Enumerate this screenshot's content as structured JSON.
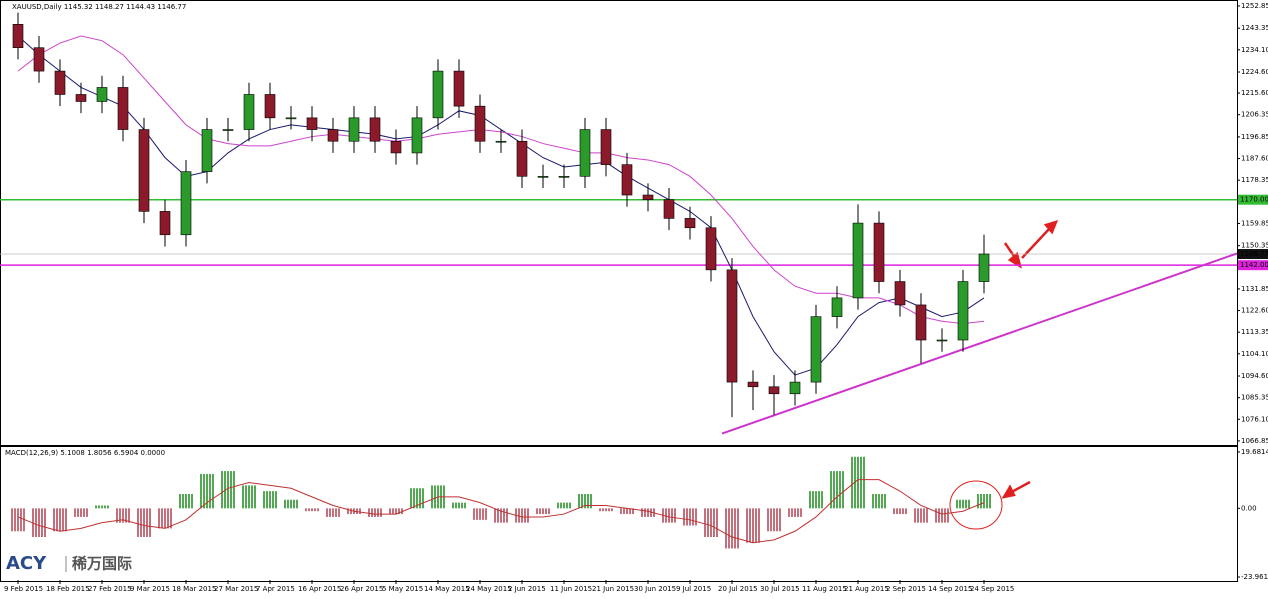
{
  "chart_data": {
    "type": "candlestick",
    "title": "XAUUSD,Daily 1145.32 1148.27 1144.43 1146.77",
    "logo": {
      "brand": "ACY",
      "name": "稀万国际"
    },
    "categories": [
      "9 Feb 2015",
      null,
      "18 Feb 2015",
      null,
      "27 Feb 2015",
      null,
      "9 Mar 2015",
      null,
      "18 Mar 2015",
      null,
      "27 Mar 2015",
      null,
      "7 Apr 2015",
      null,
      "16 Apr 2015",
      null,
      "26 Apr 2015",
      null,
      "5 May 2015",
      null,
      "14 May 2015",
      null,
      "24 May 2015",
      null,
      "2 Jun 2015",
      null,
      "11 Jun 2015",
      null,
      "21 Jun 2015",
      null,
      "30 Jun 2015",
      null,
      "9 Jul 2015",
      null,
      "20 Jul 2015",
      null,
      "30 Jul 2015",
      null,
      "11 Aug 2015",
      null,
      "21 Aug 2015",
      null,
      "2 Sep 2015",
      null,
      "14 Sep 2015",
      null,
      "24 Sep 2015"
    ],
    "open": [
      1245,
      1235,
      1225,
      1215,
      1212,
      1218,
      1200,
      1165,
      1155,
      1182,
      1200,
      1200,
      1215,
      1205,
      1205,
      1200,
      1195,
      1205,
      1195,
      1190,
      1205,
      1225,
      1210,
      1195,
      1195,
      1180,
      1180,
      1180,
      1200,
      1185,
      1172,
      1170,
      1162,
      1158,
      1140,
      1092,
      1090,
      1087,
      1092,
      1120,
      1128,
      1160,
      1135,
      1125,
      1110,
      1110,
      1135
    ],
    "high": [
      1250,
      1240,
      1230,
      1220,
      1223,
      1223,
      1205,
      1170,
      1187,
      1205,
      1205,
      1220,
      1220,
      1210,
      1210,
      1205,
      1210,
      1210,
      1200,
      1210,
      1230,
      1230,
      1215,
      1200,
      1200,
      1185,
      1185,
      1205,
      1205,
      1190,
      1177,
      1175,
      1167,
      1163,
      1145,
      1097,
      1095,
      1097,
      1125,
      1133,
      1168,
      1165,
      1140,
      1130,
      1115,
      1140,
      1155
    ],
    "low": [
      1230,
      1220,
      1210,
      1207,
      1207,
      1195,
      1160,
      1150,
      1150,
      1177,
      1195,
      1195,
      1200,
      1200,
      1195,
      1190,
      1190,
      1190,
      1185,
      1185,
      1200,
      1205,
      1190,
      1190,
      1175,
      1175,
      1175,
      1175,
      1180,
      1167,
      1165,
      1157,
      1153,
      1135,
      1077,
      1080,
      1078,
      1082,
      1087,
      1115,
      1123,
      1130,
      1120,
      1100,
      1105,
      1105,
      1130
    ],
    "close": [
      1235,
      1225,
      1215,
      1212,
      1218,
      1200,
      1165,
      1155,
      1182,
      1200,
      1200,
      1215,
      1205,
      1205,
      1200,
      1195,
      1205,
      1195,
      1190,
      1205,
      1225,
      1210,
      1195,
      1195,
      1180,
      1180,
      1180,
      1200,
      1185,
      1172,
      1170,
      1162,
      1158,
      1140,
      1092,
      1090,
      1087,
      1092,
      1120,
      1128,
      1160,
      1135,
      1125,
      1110,
      1110,
      1135,
      1146.77
    ],
    "up_color": "#2a9a2a",
    "down_color": "#8b1a2b",
    "moving_averages": [
      {
        "color": "#1a1a6e",
        "values": [
          1240,
          1232,
          1225,
          1218,
          1214,
          1210,
          1200,
          1188,
          1180,
          1182,
          1190,
          1196,
          1200,
          1202,
          1201,
          1200,
          1199,
          1198,
          1196,
          1197,
          1202,
          1208,
          1206,
          1200,
          1194,
          1188,
          1184,
          1185,
          1186,
          1180,
          1175,
          1170,
          1165,
          1158,
          1140,
          1120,
          1105,
          1095,
          1098,
          1108,
          1120,
          1126,
          1128,
          1124,
          1120,
          1122,
          1128
        ]
      },
      {
        "color": "#cc44cc",
        "values": [
          1225,
          1232,
          1237,
          1240,
          1238,
          1232,
          1222,
          1212,
          1202,
          1196,
          1194,
          1193,
          1193,
          1195,
          1197,
          1198,
          1197,
          1196,
          1195,
          1196,
          1198,
          1199,
          1200,
          1199,
          1197,
          1194,
          1192,
          1190,
          1190,
          1188,
          1187,
          1185,
          1180,
          1172,
          1162,
          1150,
          1140,
          1133,
          1130,
          1130,
          1128,
          1128,
          1125,
          1120,
          1118,
          1117,
          1118
        ]
      }
    ],
    "levels": [
      {
        "value": 1170,
        "label": "1170.00",
        "color": "#33bb33"
      },
      {
        "value": 1142,
        "label": "1142.00",
        "color": "#dd22dd"
      }
    ],
    "current_price": 1146.77,
    "trendline": [
      1070,
      1147
    ],
    "ylim": [
      1065.1,
      1255.4
    ],
    "yticks": [
      1252.85,
      1243.35,
      {
        "value": 1234.1,
        "label": "1234.10"
      },
      {
        "value": 1224.6,
        "label": "1224.60"
      },
      {
        "value": 1215.6,
        "label": "1215.60"
      },
      1206.35,
      1196.85,
      {
        "value": 1187.6,
        "label": "1187.60"
      },
      1178.35,
      1159.85,
      1150.35,
      1131.85,
      {
        "value": 1122.6,
        "label": "1122.60"
      },
      1113.35,
      {
        "value": 1104.1,
        "label": "1104.10"
      },
      {
        "value": 1094.6,
        "label": "1094.60"
      },
      1085.35,
      {
        "value": 1076.1,
        "label": "1076.10"
      },
      1066.85
    ],
    "macd": {
      "label": "MACD(12,26,9) 5.1008 1.8056 6.5904 0.0000",
      "histogram": [
        -8,
        -10,
        -8,
        -3,
        1,
        -5,
        -10,
        -7,
        5,
        12,
        13,
        8,
        6,
        3,
        -1,
        -3,
        -2,
        -3,
        -2,
        7,
        8,
        2,
        -4,
        -5,
        -5,
        -2,
        2,
        5,
        -1,
        -2,
        -3,
        -5,
        -6,
        -10,
        -14,
        -12,
        -8,
        -3,
        6,
        13,
        18,
        5,
        -2,
        -5,
        -5,
        3,
        5
      ],
      "signal": [
        -3,
        -6,
        -8,
        -7,
        -5,
        -4,
        -6,
        -7,
        -4,
        2,
        7,
        9,
        8,
        7,
        4,
        1,
        -1,
        -2,
        -2,
        1,
        4,
        4,
        2,
        -1,
        -3,
        -3,
        -2,
        1,
        1,
        0,
        -1,
        -3,
        -4,
        -6,
        -10,
        -12,
        -11,
        -8,
        -3,
        4,
        10,
        10,
        6,
        1,
        -2,
        -1,
        2
      ],
      "up_color": "#1a8a1a",
      "down_color": "#b04050",
      "signal_color": "#c03030",
      "ylim": [
        -25.0,
        21.4
      ],
      "yticks": [
        19.6814,
        {
          "value": 0,
          "label": "0.00"
        },
        -23.9613
      ]
    }
  }
}
